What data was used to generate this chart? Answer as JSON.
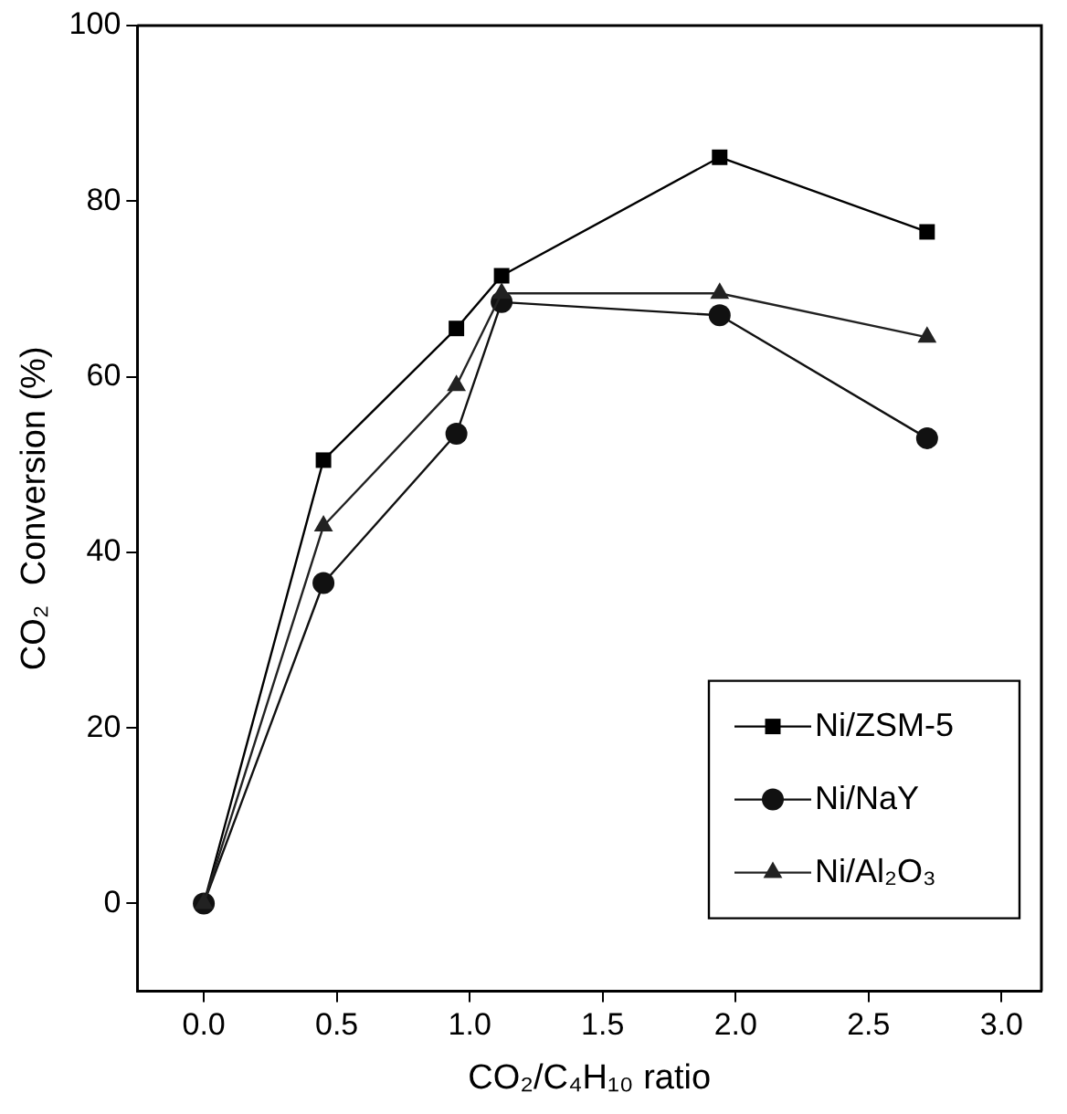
{
  "chart_data": {
    "type": "line",
    "xlabel": "CO₂/C₄H₁₀ ratio",
    "ylabel": "CO₂  Conversion (%)",
    "x": [
      0,
      0.45,
      0.95,
      1.12,
      1.94,
      2.72
    ],
    "series": [
      {
        "name": "Ni/ZSM-5",
        "color": "#000000",
        "marker": "square",
        "values": [
          0,
          50.5,
          65.5,
          71.5,
          85,
          76.5
        ]
      },
      {
        "name": "Ni/NaY",
        "color": "#111111",
        "marker": "circle",
        "values": [
          0,
          36.5,
          53.5,
          68.5,
          67,
          53
        ]
      },
      {
        "name": "Ni/Al₂O₃",
        "color": "#222222",
        "marker": "triangle",
        "values": [
          0,
          43,
          59,
          69.5,
          69.5,
          64.5
        ]
      }
    ],
    "xlim": [
      -0.25,
      3.15
    ],
    "xticks": [
      {
        "value": 0,
        "label": "0.0"
      },
      {
        "value": 0.5,
        "label": "0.5"
      },
      {
        "value": 1,
        "label": "1.0"
      },
      {
        "value": 1.5,
        "label": "1.5"
      },
      {
        "value": 2,
        "label": "2.0"
      },
      {
        "value": 2.5,
        "label": "2.5"
      },
      {
        "value": 3,
        "label": "3.0"
      }
    ],
    "ylim": [
      -10,
      100
    ],
    "yticks": [
      0,
      20,
      40,
      60,
      80,
      100
    ],
    "grid": false,
    "legend": "bottom right",
    "line_style": "solid"
  }
}
